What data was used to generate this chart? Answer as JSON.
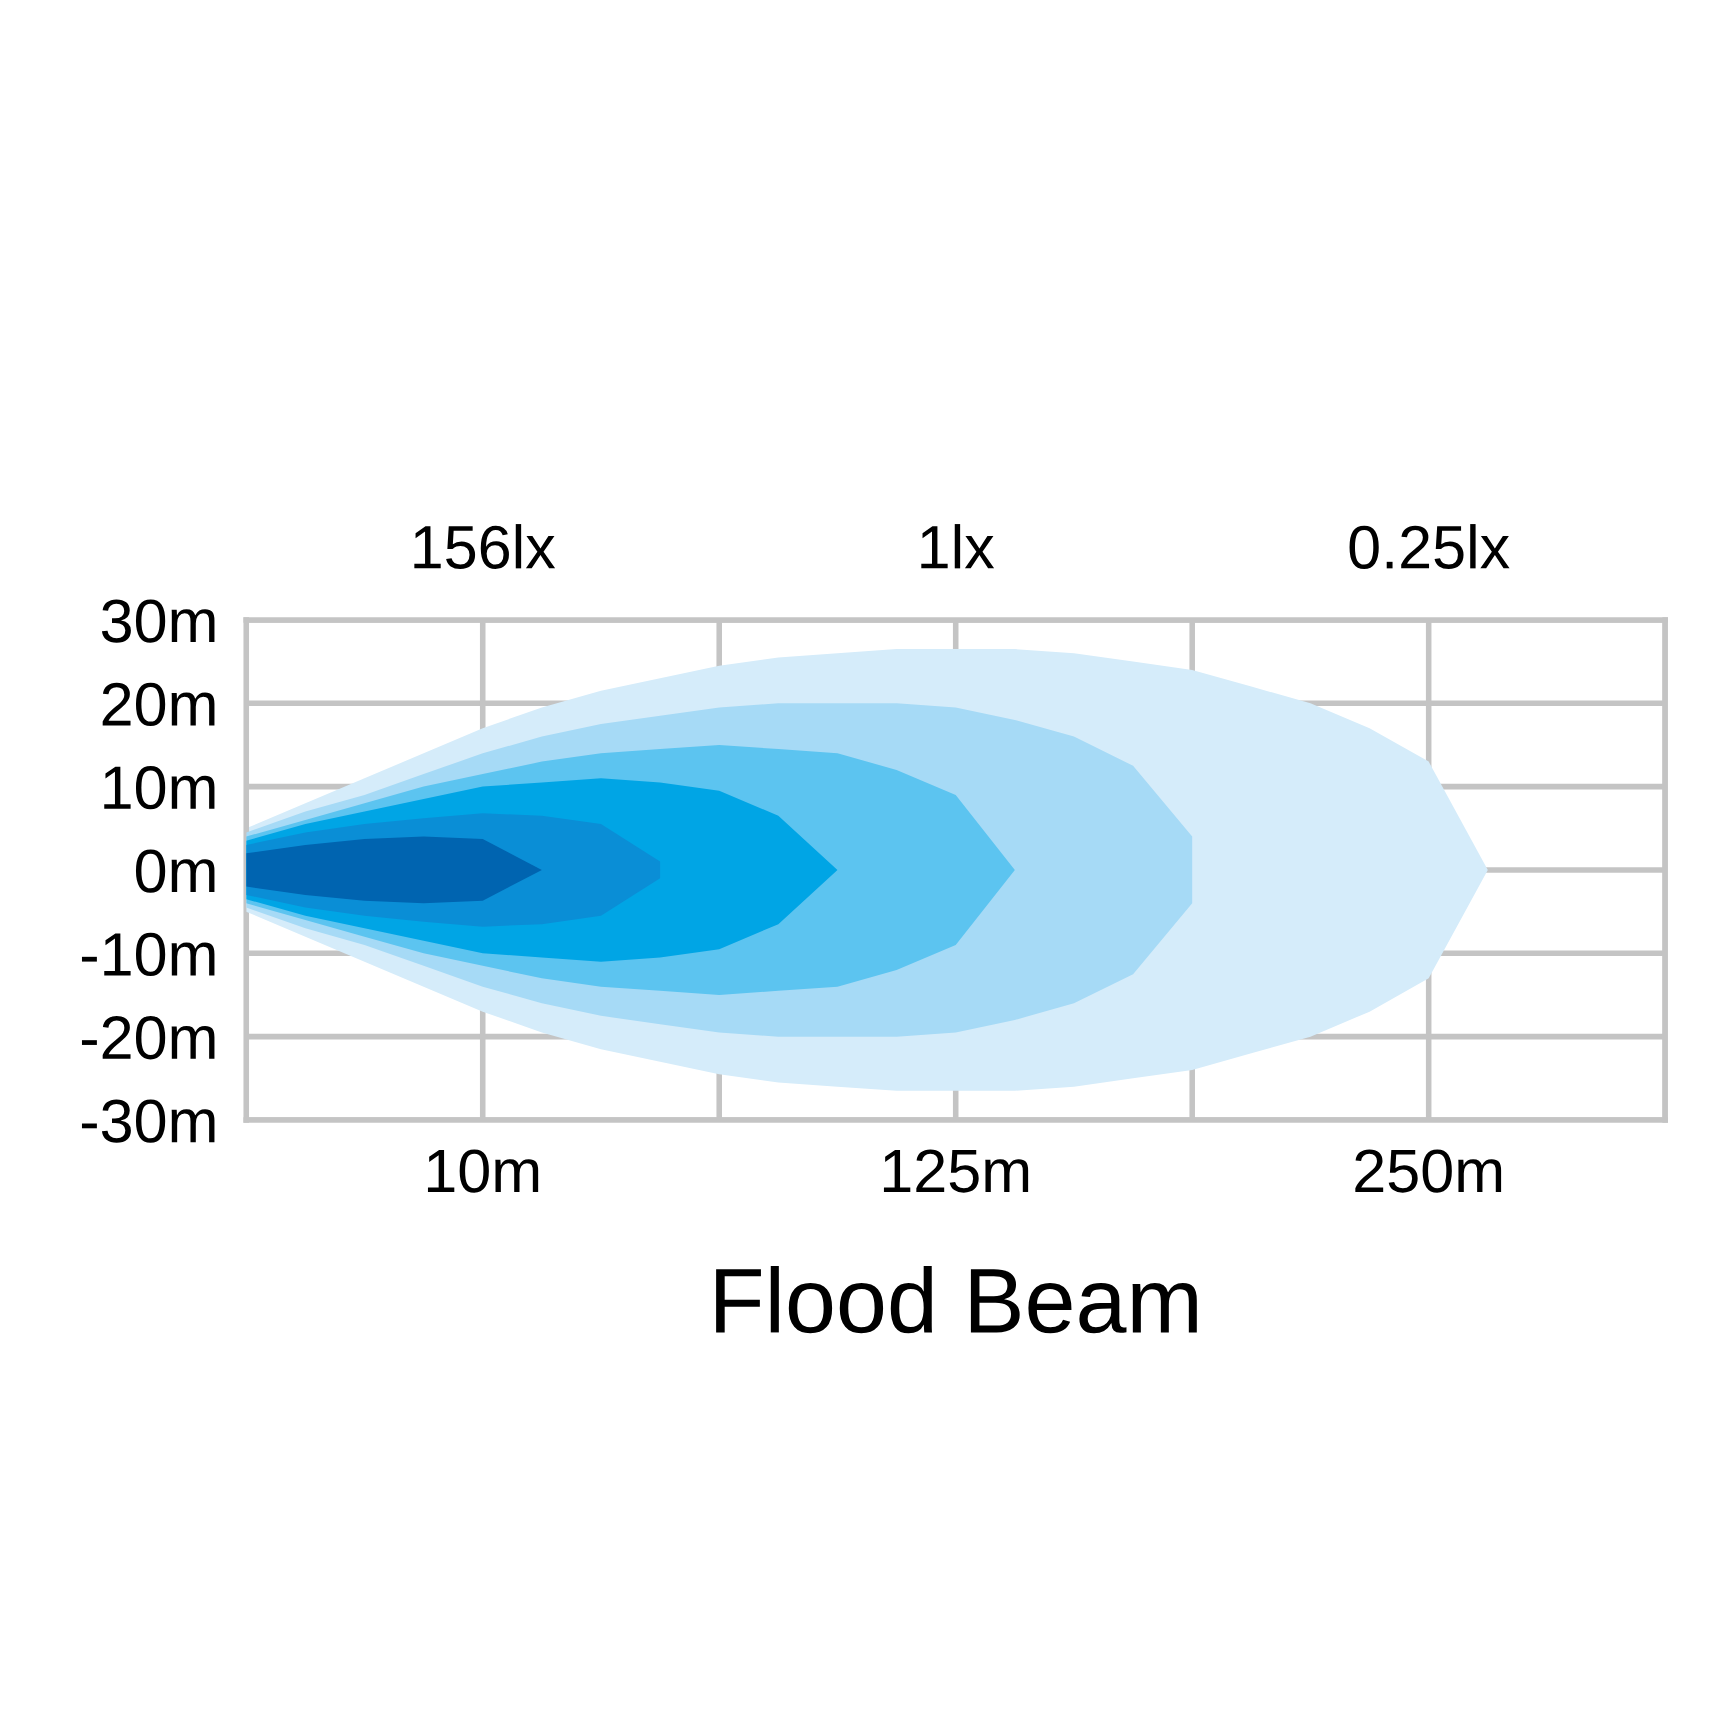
{
  "chart_data": {
    "type": "area",
    "title": "Flood Beam",
    "categories": [
      null,
      null,
      null,
      null,
      "10m",
      null,
      null,
      null,
      null,
      null,
      null,
      null,
      "125m",
      null,
      null,
      null,
      null,
      null,
      null,
      null,
      "250m",
      null,
      null,
      null,
      null
    ],
    "annotations": [
      "156lx",
      "1lx",
      "0.25lx"
    ],
    "ylim": [
      -30,
      30
    ],
    "yticks": [
      {
        "value": -30,
        "label": "-30m"
      },
      {
        "value": -20,
        "label": "-20m"
      },
      {
        "value": -10,
        "label": "-10m"
      },
      {
        "value": 0,
        "label": "0m"
      },
      {
        "value": 10,
        "label": "10m"
      },
      {
        "value": 20,
        "label": "20m"
      },
      {
        "value": 30,
        "label": "30m"
      }
    ],
    "grid": true,
    "series": [
      {
        "color": "#d5ecfa",
        "values": [
          5,
          8,
          11,
          14,
          17,
          19.5,
          21.5,
          23,
          24.5,
          25.5,
          26,
          26.5,
          26.5,
          26.5,
          26,
          25,
          24,
          22,
          20,
          17,
          13,
          0,
          null,
          null,
          null
        ]
      },
      {
        "color": "#d5ecfa",
        "values": [
          -5,
          -8,
          -11,
          -14,
          -17,
          -19.5,
          -21.5,
          -23,
          -24.5,
          -25.5,
          -26,
          -26.5,
          -26.5,
          -26.5,
          -26,
          -25,
          -24,
          -22,
          -20,
          -17,
          -13,
          0,
          null,
          null,
          null
        ]
      },
      {
        "color": "#a6daf6",
        "values": [
          4.5,
          7,
          9,
          11.5,
          14,
          16,
          17.5,
          18.5,
          19.5,
          20,
          20,
          20,
          19.5,
          18,
          16,
          12.5,
          4,
          null,
          null,
          null,
          null,
          null,
          null,
          null,
          null
        ]
      },
      {
        "color": "#a6daf6",
        "values": [
          -4.5,
          -7,
          -9,
          -11.5,
          -14,
          -16,
          -17.5,
          -18.5,
          -19.5,
          -20,
          -20,
          -20,
          -19.5,
          -18,
          -16,
          -12.5,
          -4,
          null,
          null,
          null,
          null,
          null,
          null,
          null,
          null
        ]
      },
      {
        "color": "#5cc4f0",
        "values": [
          4,
          6,
          8,
          10,
          11.5,
          13,
          14,
          14.5,
          15,
          14.5,
          14,
          12,
          9,
          0,
          null,
          null,
          null,
          null,
          null,
          null,
          null,
          null,
          null,
          null,
          null
        ]
      },
      {
        "color": "#5cc4f0",
        "values": [
          -4,
          -6,
          -8,
          -10,
          -11.5,
          -13,
          -14,
          -14.5,
          -15,
          -14.5,
          -14,
          -12,
          -9,
          0,
          null,
          null,
          null,
          null,
          null,
          null,
          null,
          null,
          null,
          null,
          null
        ]
      },
      {
        "color": "#00a5e5",
        "values": [
          3.5,
          5.5,
          7,
          8.5,
          10,
          10.5,
          11,
          10.5,
          9.5,
          6.5,
          0,
          null,
          null,
          null,
          null,
          null,
          null,
          null,
          null,
          null,
          null,
          null,
          null,
          null,
          null
        ]
      },
      {
        "color": "#00a5e5",
        "values": [
          -3.5,
          -5.5,
          -7,
          -8.5,
          -10,
          -10.5,
          -11,
          -10.5,
          -9.5,
          -6.5,
          0,
          null,
          null,
          null,
          null,
          null,
          null,
          null,
          null,
          null,
          null,
          null,
          null,
          null,
          null
        ]
      },
      {
        "color": "#0a8ed6",
        "values": [
          3,
          4.5,
          5.5,
          6.2,
          6.8,
          6.5,
          5.5,
          1,
          null,
          null,
          null,
          null,
          null,
          null,
          null,
          null,
          null,
          null,
          null,
          null,
          null,
          null,
          null,
          null,
          null
        ]
      },
      {
        "color": "#0a8ed6",
        "values": [
          -3,
          -4.5,
          -5.5,
          -6.2,
          -6.8,
          -6.5,
          -5.5,
          -1,
          null,
          null,
          null,
          null,
          null,
          null,
          null,
          null,
          null,
          null,
          null,
          null,
          null,
          null,
          null,
          null,
          null
        ]
      },
      {
        "color": "#0064b0",
        "values": [
          2,
          3,
          3.7,
          4,
          3.7,
          0,
          null,
          null,
          null,
          null,
          null,
          null,
          null,
          null,
          null,
          null,
          null,
          null,
          null,
          null,
          null,
          null,
          null,
          null,
          null
        ]
      },
      {
        "color": "#0064b0",
        "values": [
          -2,
          -3,
          -3.7,
          -4,
          -3.7,
          0,
          null,
          null,
          null,
          null,
          null,
          null,
          null,
          null,
          null,
          null,
          null,
          null,
          null,
          null,
          null,
          null,
          null,
          null,
          null
        ]
      }
    ]
  }
}
